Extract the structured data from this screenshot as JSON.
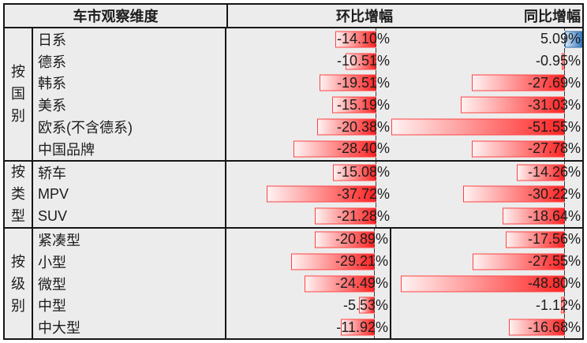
{
  "chart_data": {
    "type": "table",
    "title": "车市观察维度",
    "header": {
      "dimension": "车市观察维度",
      "mom": "环比增幅",
      "yoy": "同比增幅"
    },
    "columns": [
      "车市观察维度",
      "环比增幅",
      "同比增幅"
    ],
    "bar_axis": {
      "min": -51.55,
      "max": 5.09
    },
    "value_suffix": "%",
    "groups": [
      {
        "label": "按国别",
        "divider": false,
        "rows": [
          {
            "category": "日系",
            "mom": -14.1,
            "yoy": 5.09
          },
          {
            "category": "德系",
            "mom": -10.51,
            "yoy": -0.95
          },
          {
            "category": "韩系",
            "mom": -19.51,
            "yoy": -27.69
          },
          {
            "category": "美系",
            "mom": -15.19,
            "yoy": -31.03
          },
          {
            "category": "欧系(不含德系)",
            "mom": -20.38,
            "yoy": -51.55
          },
          {
            "category": "中国品牌",
            "mom": -28.4,
            "yoy": -27.78
          }
        ]
      },
      {
        "label": "按类型",
        "divider": false,
        "rows": [
          {
            "category": "轿车",
            "mom": -15.08,
            "yoy": -14.26
          },
          {
            "category": "MPV",
            "mom": -37.72,
            "yoy": -30.22
          },
          {
            "category": "SUV",
            "mom": -21.28,
            "yoy": -18.64
          }
        ]
      },
      {
        "label": "按级别",
        "divider": true,
        "rows": [
          {
            "category": "紧凑型",
            "mom": -20.89,
            "yoy": -17.56
          },
          {
            "category": "小型",
            "mom": -29.21,
            "yoy": -27.55
          },
          {
            "category": "微型",
            "mom": -24.49,
            "yoy": -48.8
          },
          {
            "category": "中型",
            "mom": -5.53,
            "yoy": -1.12
          },
          {
            "category": "中大型",
            "mom": -11.92,
            "yoy": -16.68
          }
        ]
      }
    ],
    "colors": {
      "page_background": "#ffffff",
      "table_background": "#ececec",
      "grid_line": "#161616",
      "text": "#1c1c1c",
      "axis_dash": "#3c3c3c",
      "negative_bar_light": "#fff2f2",
      "negative_bar_dark": "#ff2424",
      "negative_bar_border": "#ff4343",
      "positive_bar_light": "#cfe3f6",
      "positive_bar_dark": "#3a7abf",
      "positive_bar_border": "#2e6da4"
    }
  }
}
